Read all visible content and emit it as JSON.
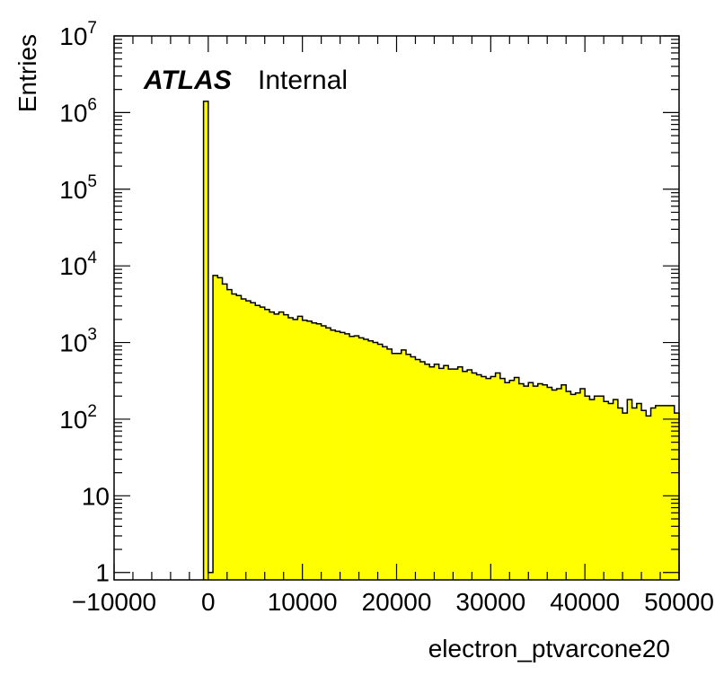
{
  "chart_data": {
    "type": "bar",
    "title": "",
    "xlabel": "electron_ptvarcone20",
    "ylabel": "Entries",
    "xlim": [
      -10000,
      50000
    ],
    "ylim": [
      0.8,
      10000000
    ],
    "yscale": "log",
    "grid": false,
    "fill_color": "#ffff00",
    "line_color": "#000000",
    "annotation": {
      "bold": "ATLAS",
      "normal": "Internal"
    },
    "x_ticks": [
      {
        "value": -10000,
        "label": "−10000"
      },
      {
        "value": 0,
        "label": "0"
      },
      {
        "value": 10000,
        "label": "10000"
      },
      {
        "value": 20000,
        "label": "20000"
      },
      {
        "value": 30000,
        "label": "30000"
      },
      {
        "value": 40000,
        "label": "40000"
      },
      {
        "value": 50000,
        "label": "50000"
      }
    ],
    "y_ticks": [
      {
        "value": 1,
        "base": "1",
        "exp": ""
      },
      {
        "value": 10,
        "base": "10",
        "exp": ""
      },
      {
        "value": 100,
        "base": "10",
        "exp": "2"
      },
      {
        "value": 1000,
        "base": "10",
        "exp": "3"
      },
      {
        "value": 10000,
        "base": "10",
        "exp": "4"
      },
      {
        "value": 100000,
        "base": "10",
        "exp": "5"
      },
      {
        "value": 1000000,
        "base": "10",
        "exp": "6"
      },
      {
        "value": 10000000,
        "base": "10",
        "exp": "7"
      }
    ],
    "bin_width": 500,
    "bins": [
      {
        "x": -500,
        "y": 1400000
      },
      {
        "x": 0,
        "y": 1
      },
      {
        "x": 500,
        "y": 7500
      },
      {
        "x": 1000,
        "y": 7000
      },
      {
        "x": 1500,
        "y": 5800
      },
      {
        "x": 2000,
        "y": 4900
      },
      {
        "x": 2500,
        "y": 4300
      },
      {
        "x": 3000,
        "y": 4100
      },
      {
        "x": 3500,
        "y": 3700
      },
      {
        "x": 4000,
        "y": 3500
      },
      {
        "x": 4500,
        "y": 3300
      },
      {
        "x": 5000,
        "y": 3050
      },
      {
        "x": 5500,
        "y": 2900
      },
      {
        "x": 6000,
        "y": 2700
      },
      {
        "x": 6500,
        "y": 2500
      },
      {
        "x": 7000,
        "y": 2350
      },
      {
        "x": 7500,
        "y": 2500
      },
      {
        "x": 8000,
        "y": 2300
      },
      {
        "x": 8500,
        "y": 2100
      },
      {
        "x": 9000,
        "y": 2000
      },
      {
        "x": 9500,
        "y": 2200
      },
      {
        "x": 10000,
        "y": 1950
      },
      {
        "x": 10500,
        "y": 1900
      },
      {
        "x": 11000,
        "y": 1800
      },
      {
        "x": 11500,
        "y": 1750
      },
      {
        "x": 12000,
        "y": 1650
      },
      {
        "x": 12500,
        "y": 1550
      },
      {
        "x": 13000,
        "y": 1450
      },
      {
        "x": 13500,
        "y": 1400
      },
      {
        "x": 14000,
        "y": 1350
      },
      {
        "x": 14500,
        "y": 1300
      },
      {
        "x": 15000,
        "y": 1200
      },
      {
        "x": 15500,
        "y": 1220
      },
      {
        "x": 16000,
        "y": 1150
      },
      {
        "x": 16500,
        "y": 1100
      },
      {
        "x": 17000,
        "y": 1050
      },
      {
        "x": 17500,
        "y": 1000
      },
      {
        "x": 18000,
        "y": 950
      },
      {
        "x": 18500,
        "y": 880
      },
      {
        "x": 19000,
        "y": 820
      },
      {
        "x": 19500,
        "y": 720
      },
      {
        "x": 20000,
        "y": 720
      },
      {
        "x": 20500,
        "y": 800
      },
      {
        "x": 21000,
        "y": 700
      },
      {
        "x": 21500,
        "y": 650
      },
      {
        "x": 22000,
        "y": 600
      },
      {
        "x": 22500,
        "y": 560
      },
      {
        "x": 23000,
        "y": 520
      },
      {
        "x": 23500,
        "y": 480
      },
      {
        "x": 24000,
        "y": 520
      },
      {
        "x": 24500,
        "y": 460
      },
      {
        "x": 25000,
        "y": 500
      },
      {
        "x": 25500,
        "y": 450
      },
      {
        "x": 26000,
        "y": 450
      },
      {
        "x": 26500,
        "y": 480
      },
      {
        "x": 27000,
        "y": 420
      },
      {
        "x": 27500,
        "y": 440
      },
      {
        "x": 28000,
        "y": 400
      },
      {
        "x": 28500,
        "y": 380
      },
      {
        "x": 29000,
        "y": 360
      },
      {
        "x": 29500,
        "y": 340
      },
      {
        "x": 30000,
        "y": 360
      },
      {
        "x": 30500,
        "y": 400
      },
      {
        "x": 31000,
        "y": 340
      },
      {
        "x": 31500,
        "y": 300
      },
      {
        "x": 32000,
        "y": 320
      },
      {
        "x": 32500,
        "y": 350
      },
      {
        "x": 33000,
        "y": 290
      },
      {
        "x": 33500,
        "y": 270
      },
      {
        "x": 34000,
        "y": 300
      },
      {
        "x": 34500,
        "y": 270
      },
      {
        "x": 35000,
        "y": 290
      },
      {
        "x": 35500,
        "y": 280
      },
      {
        "x": 36000,
        "y": 260
      },
      {
        "x": 36500,
        "y": 240
      },
      {
        "x": 37000,
        "y": 250
      },
      {
        "x": 37500,
        "y": 280
      },
      {
        "x": 38000,
        "y": 230
      },
      {
        "x": 38500,
        "y": 210
      },
      {
        "x": 39000,
        "y": 220
      },
      {
        "x": 39500,
        "y": 250
      },
      {
        "x": 40000,
        "y": 200
      },
      {
        "x": 40500,
        "y": 180
      },
      {
        "x": 41000,
        "y": 200
      },
      {
        "x": 41500,
        "y": 200
      },
      {
        "x": 42000,
        "y": 170
      },
      {
        "x": 42500,
        "y": 160
      },
      {
        "x": 43000,
        "y": 180
      },
      {
        "x": 43500,
        "y": 140
      },
      {
        "x": 44000,
        "y": 120
      },
      {
        "x": 44500,
        "y": 180
      },
      {
        "x": 45000,
        "y": 140
      },
      {
        "x": 45500,
        "y": 160
      },
      {
        "x": 46000,
        "y": 130
      },
      {
        "x": 46500,
        "y": 110
      },
      {
        "x": 47000,
        "y": 140
      },
      {
        "x": 47500,
        "y": 150
      },
      {
        "x": 48000,
        "y": 150
      },
      {
        "x": 48500,
        "y": 150
      },
      {
        "x": 49000,
        "y": 150
      },
      {
        "x": 49500,
        "y": 120
      }
    ]
  }
}
